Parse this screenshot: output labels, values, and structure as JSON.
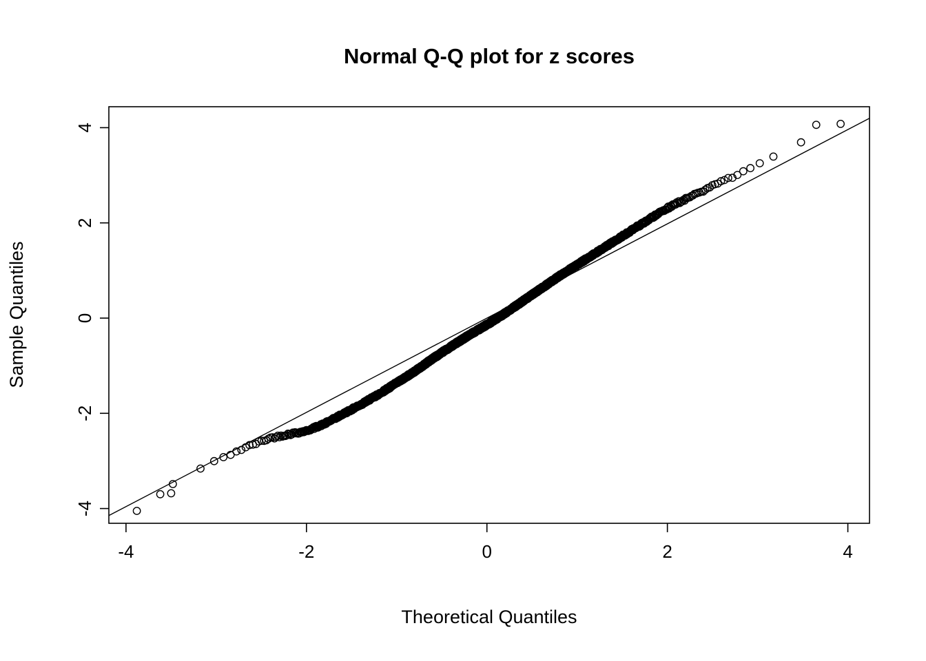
{
  "chart_data": {
    "type": "scatter",
    "title": "Normal Q-Q plot for z scores",
    "xlabel": "Theoretical Quantiles",
    "ylabel": "Sample Quantiles",
    "xlim": [
      -4.19,
      4.24
    ],
    "ylim": [
      -4.31,
      4.44
    ],
    "xtick_labels": [
      "-4",
      "-2",
      "0",
      "2",
      "4"
    ],
    "xtick_values": [
      -4,
      -2,
      0,
      2,
      4
    ],
    "ytick_labels": [
      "-4",
      "-2",
      "0",
      "2",
      "4"
    ],
    "ytick_values": [
      -4,
      -2,
      0,
      2,
      4
    ],
    "grid": false,
    "legend": null,
    "background_color": "#ffffff",
    "point_color": "#000000",
    "line_color": "#000000",
    "reference_line": {
      "slope": 0.99,
      "intercept": 0.0
    },
    "n_points": 2000,
    "jitter": 0.05,
    "curve_anchors": [
      [
        -3.6,
        -3.7
      ],
      [
        -3.4,
        -3.35
      ],
      [
        -3.2,
        -3.18
      ],
      [
        -3.0,
        -3.0
      ],
      [
        -2.8,
        -2.82
      ],
      [
        -2.6,
        -2.66
      ],
      [
        -2.4,
        -2.52
      ],
      [
        -2.2,
        -2.44
      ],
      [
        -2.0,
        -2.37
      ],
      [
        -1.8,
        -2.22
      ],
      [
        -1.6,
        -2.02
      ],
      [
        -1.4,
        -1.82
      ],
      [
        -1.2,
        -1.6
      ],
      [
        -1.0,
        -1.36
      ],
      [
        -0.8,
        -1.12
      ],
      [
        -0.6,
        -0.85
      ],
      [
        -0.4,
        -0.6
      ],
      [
        -0.2,
        -0.36
      ],
      [
        0.0,
        -0.14
      ],
      [
        0.2,
        0.1
      ],
      [
        0.4,
        0.36
      ],
      [
        0.6,
        0.62
      ],
      [
        0.8,
        0.88
      ],
      [
        1.0,
        1.12
      ],
      [
        1.2,
        1.36
      ],
      [
        1.4,
        1.6
      ],
      [
        1.6,
        1.84
      ],
      [
        1.8,
        2.08
      ],
      [
        2.0,
        2.31
      ],
      [
        2.2,
        2.5
      ],
      [
        2.4,
        2.68
      ],
      [
        2.6,
        2.86
      ],
      [
        2.8,
        3.04
      ],
      [
        3.0,
        3.22
      ],
      [
        3.2,
        3.42
      ],
      [
        3.4,
        3.62
      ],
      [
        3.55,
        3.72
      ]
    ],
    "outliers": [
      [
        -3.88,
        -4.05
      ],
      [
        -3.62,
        -3.7
      ],
      [
        -3.5,
        -3.68
      ],
      [
        3.65,
        4.06
      ],
      [
        3.92,
        4.08
      ]
    ]
  }
}
